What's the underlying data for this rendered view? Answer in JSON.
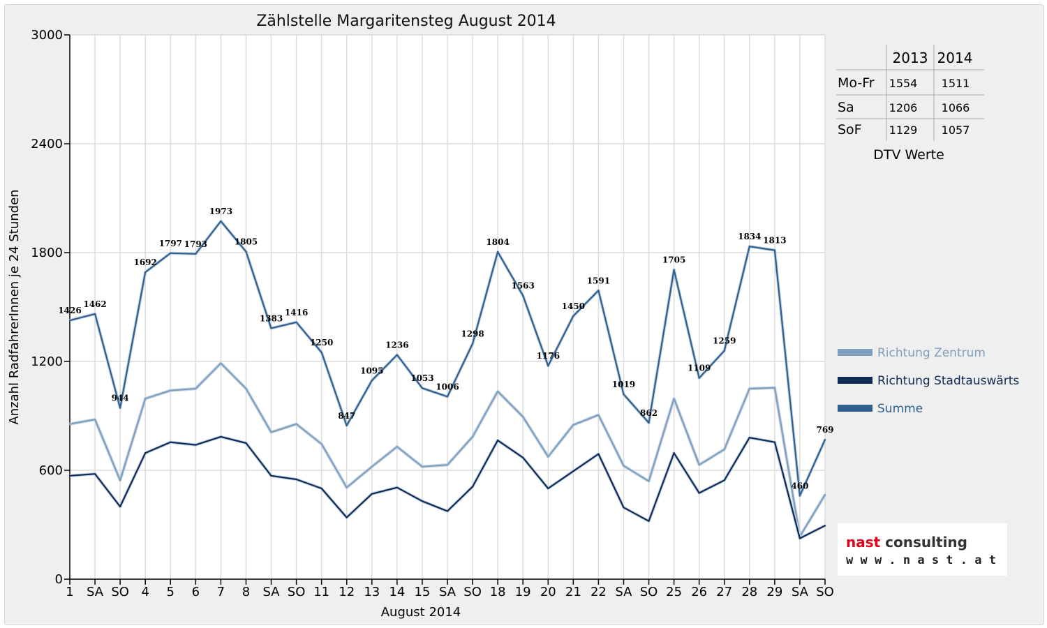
{
  "chart_data": {
    "type": "line",
    "title": "Zählstelle Margaritensteg August 2014",
    "xlabel": "August 2014",
    "ylabel": "Anzahl RadfahrerInnen je 24 Stunden",
    "ylim": [
      0,
      3000
    ],
    "yticks": [
      "0",
      "600",
      "1200",
      "1800",
      "2400",
      "3000"
    ],
    "grid": true,
    "legend_placement": "right",
    "categories": [
      "1",
      "SA",
      "SO",
      "4",
      "5",
      "6",
      "7",
      "8",
      "SA",
      "SO",
      "11",
      "12",
      "13",
      "14",
      "15",
      "SA",
      "SO",
      "18",
      "19",
      "20",
      "21",
      "22",
      "SA",
      "SO",
      "25",
      "26",
      "27",
      "28",
      "29",
      "SA",
      "SO"
    ],
    "red_categories": [
      2,
      9,
      14,
      16,
      23,
      30
    ],
    "series": [
      {
        "name": "Richtung Zentrum",
        "color": "#7f9fc0",
        "values": [
          855,
          880,
          545,
          995,
          1040,
          1050,
          1190,
          1050,
          810,
          855,
          745,
          505,
          620,
          730,
          620,
          630,
          785,
          1035,
          895,
          675,
          850,
          905,
          625,
          540,
          995,
          630,
          715,
          1050,
          1055,
          235,
          465
        ]
      },
      {
        "name": "Richtung Stadtauswärts",
        "color": "#0e2b56",
        "values": [
          570,
          580,
          400,
          695,
          755,
          740,
          785,
          750,
          570,
          550,
          500,
          340,
          470,
          505,
          430,
          375,
          510,
          765,
          670,
          500,
          595,
          690,
          395,
          320,
          695,
          475,
          545,
          780,
          755,
          225,
          295
        ]
      },
      {
        "name": "Summe",
        "color": "#2e5f8e",
        "values": [
          1426,
          1462,
          944,
          1692,
          1797,
          1793,
          1973,
          1805,
          1383,
          1416,
          1250,
          847,
          1095,
          1236,
          1053,
          1006,
          1298,
          1804,
          1563,
          1176,
          1450,
          1591,
          1019,
          862,
          1705,
          1109,
          1259,
          1834,
          1813,
          460,
          769
        ],
        "labels": [
          "1426",
          "1462",
          "944",
          "1692",
          "1797",
          "1793",
          "1973",
          "1805",
          "1383",
          "1416",
          "1250",
          "847",
          "1095",
          "1236",
          "1053",
          "1006",
          "1298",
          "1804",
          "1563",
          "1176",
          "1450",
          "1591",
          "1019",
          "862",
          "1705",
          "1109",
          "1259",
          "1834",
          "1813",
          "460",
          "769"
        ]
      }
    ]
  },
  "dtv_table": {
    "title": "DTV Werte",
    "years": [
      "2013",
      "2014"
    ],
    "rows": [
      {
        "label": "Mo-Fr",
        "v2013": "1554",
        "v2014": "1511"
      },
      {
        "label": "Sa",
        "v2013": "1206",
        "v2014": "1066"
      },
      {
        "label": "SoF",
        "v2013": "1129",
        "v2014": "1057"
      }
    ]
  },
  "logo": {
    "name_part1": "nast",
    "name_part2": "consulting",
    "url": "w w w . n a s t . a t",
    "accent_color": "#e2001a"
  }
}
